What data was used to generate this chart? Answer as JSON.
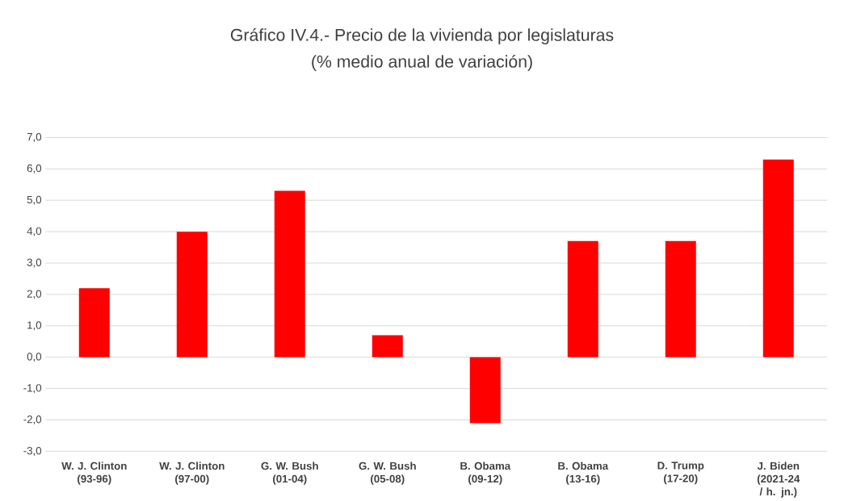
{
  "chart_data": {
    "type": "bar",
    "title": "Gráfico IV.4.- Precio de la vivienda por legislaturas",
    "subtitle": "(% medio anual de variación)",
    "categories": [
      "W. J. Clinton (93-96)",
      "W. J. Clinton (97-00)",
      "G. W. Bush (01-04)",
      "G. W. Bush (05-08)",
      "B. Obama (09-12)",
      "B. Obama (13-16)",
      "D. Trump (17-20)",
      "J. Biden (2021-24 / h. jn.)"
    ],
    "values": [
      2.2,
      4.0,
      5.3,
      0.7,
      -2.1,
      3.7,
      3.7,
      6.3
    ],
    "color": "#ff0000",
    "ylim": [
      -3,
      7
    ],
    "yticks": [
      {
        "value": -3,
        "label": "-3,0"
      },
      {
        "value": -2,
        "label": "-2,0"
      },
      {
        "value": -1,
        "label": "-1,0"
      },
      {
        "value": 0,
        "label": "0,0"
      },
      {
        "value": 1,
        "label": "1,0"
      },
      {
        "value": 2,
        "label": "2,0"
      },
      {
        "value": 3,
        "label": "3,0"
      },
      {
        "value": 4,
        "label": "4,0"
      },
      {
        "value": 5,
        "label": "5,0"
      },
      {
        "value": 6,
        "label": "6,0"
      },
      {
        "value": 7,
        "label": "7,0"
      }
    ],
    "grid": "y"
  }
}
